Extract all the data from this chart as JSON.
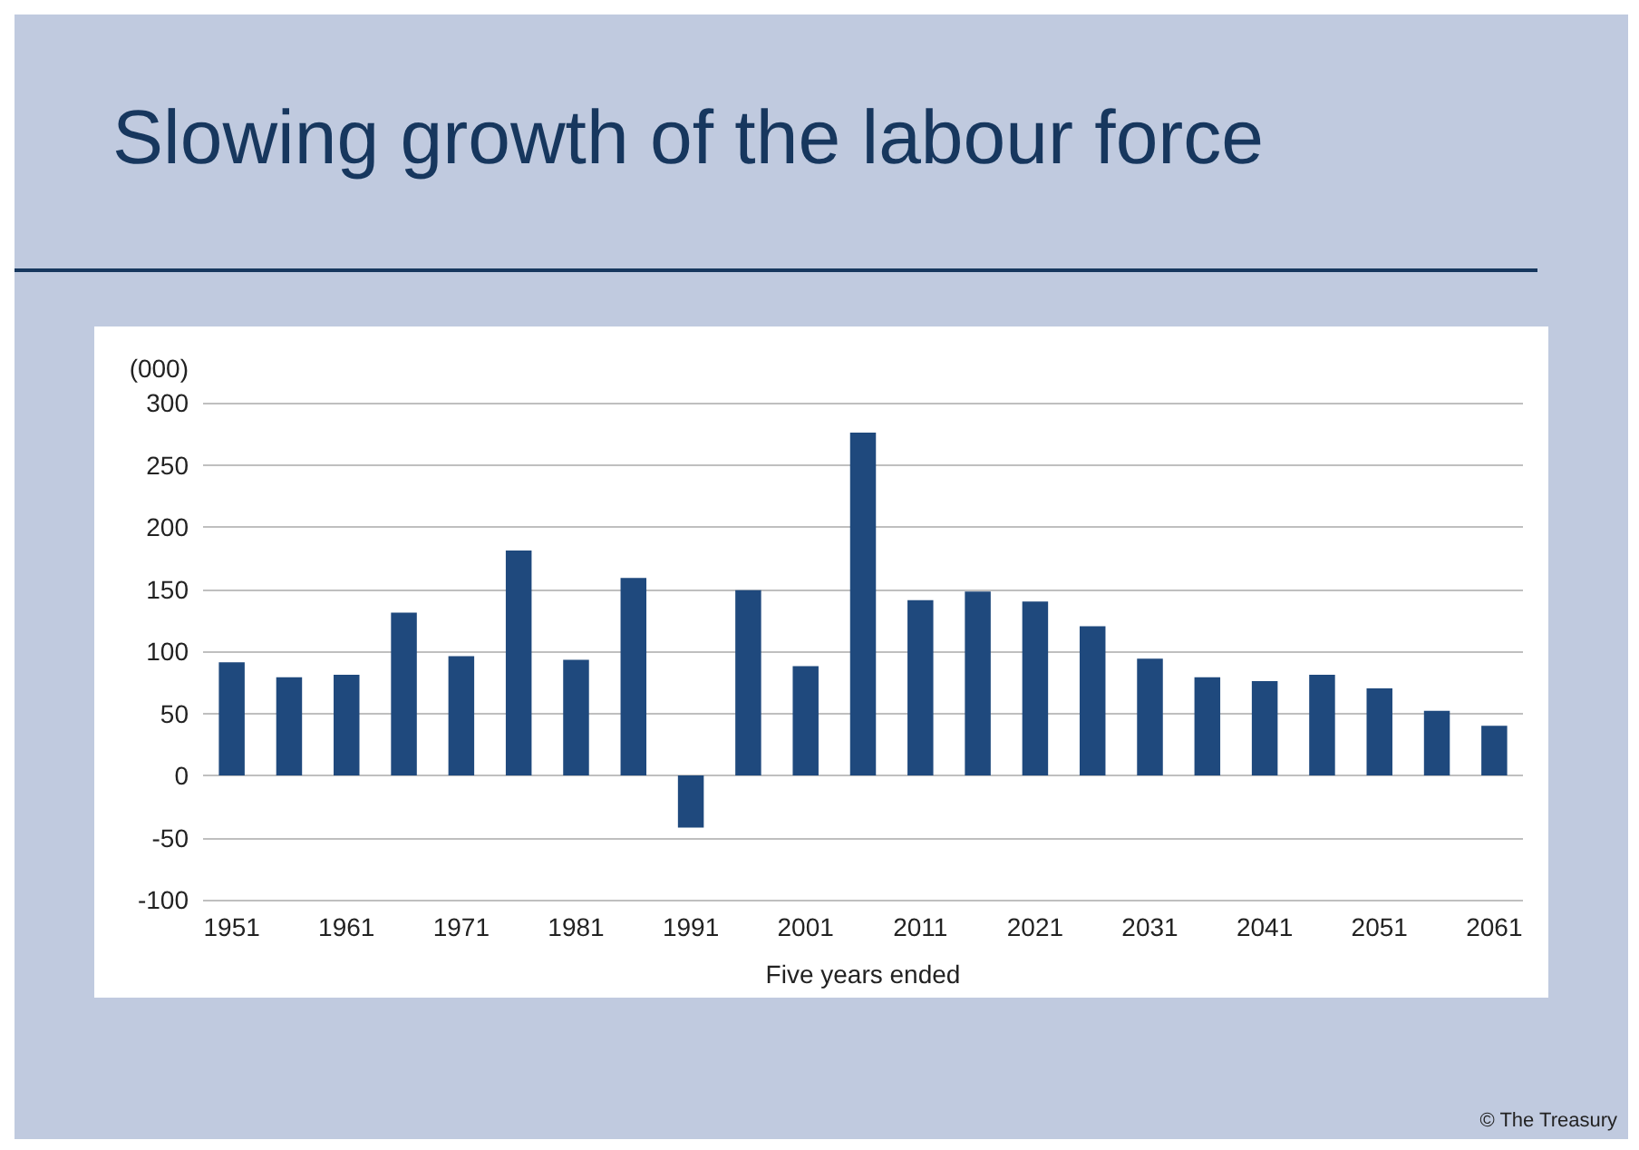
{
  "chart_data": {
    "type": "bar",
    "title": "Slowing growth of the labour force",
    "ylabel": "(000)",
    "xlabel": "Five years ended",
    "annotations": [
      "© The Treasury"
    ],
    "categories": [
      "1951",
      null,
      "1961",
      null,
      "1971",
      null,
      "1981",
      null,
      "1991",
      null,
      "2001",
      null,
      "2011",
      null,
      "2021",
      null,
      "2031",
      null,
      "2041",
      null,
      "2051",
      null,
      "2061"
    ],
    "values": [
      91,
      79,
      81,
      131,
      96,
      181,
      93,
      159,
      -42,
      149,
      88,
      276,
      141,
      148,
      140,
      120,
      94,
      79,
      76,
      81,
      70,
      52,
      40
    ],
    "color": "#1f497d",
    "ylim": [
      -100,
      300
    ],
    "yticks": [
      -100,
      -50,
      0,
      50,
      100,
      150,
      200,
      250,
      300
    ],
    "grid": "y"
  }
}
